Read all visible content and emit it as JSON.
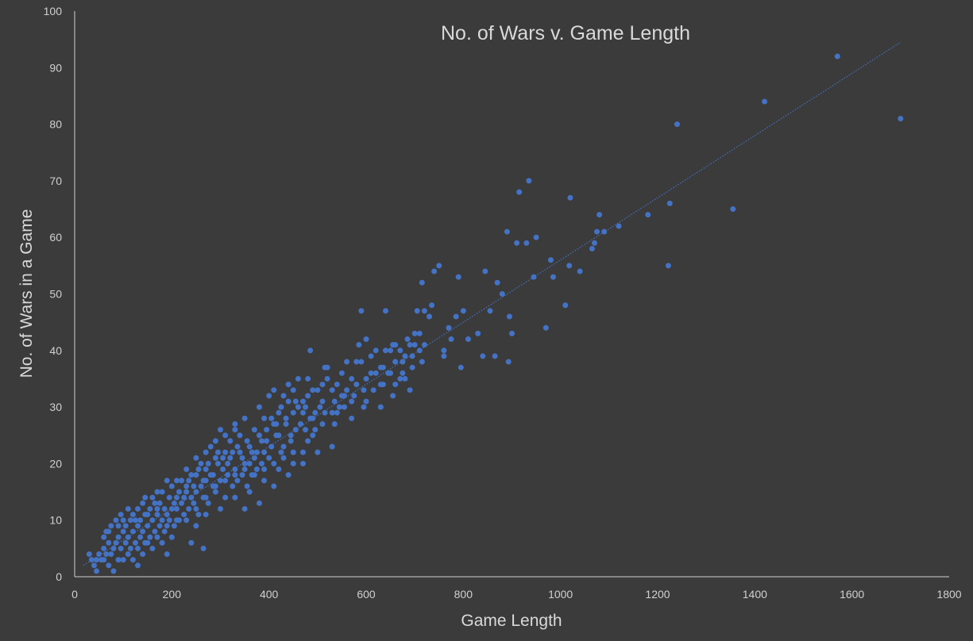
{
  "chart_data": {
    "type": "scatter",
    "title": "No. of Wars v. Game Length",
    "xlabel": "Game Length",
    "ylabel": "No. of  Wars in a Game",
    "xlim": [
      0,
      1800
    ],
    "ylim": [
      0,
      100
    ],
    "x_ticks": [
      "0",
      "200",
      "400",
      "600",
      "800",
      "1000",
      "1200",
      "1400",
      "1600",
      "1800"
    ],
    "y_ticks": [
      "0",
      "10",
      "20",
      "30",
      "40",
      "50",
      "60",
      "70",
      "80",
      "90",
      "100"
    ],
    "grid": false,
    "legend": "none",
    "colors": {
      "background": "#3b3b3b",
      "marker": "#4472c4",
      "axis": "#d0d0d0",
      "text": "#d0d0d0"
    },
    "trendline": {
      "style": "dotted",
      "from": [
        18,
        2
      ],
      "to": [
        1700,
        94.5
      ]
    },
    "points": [
      [
        1570,
        92
      ],
      [
        1700,
        81
      ],
      [
        1420,
        84
      ],
      [
        1240,
        80
      ],
      [
        1355,
        65
      ],
      [
        1225,
        66
      ],
      [
        1222,
        55
      ],
      [
        1180,
        64
      ],
      [
        1120,
        62
      ],
      [
        1090,
        61
      ],
      [
        1080,
        64
      ],
      [
        1075,
        61
      ],
      [
        1070,
        59
      ],
      [
        1065,
        58
      ],
      [
        1040,
        54
      ],
      [
        1020,
        67
      ],
      [
        1018,
        55
      ],
      [
        1010,
        48
      ],
      [
        980,
        56
      ],
      [
        985,
        53
      ],
      [
        970,
        44
      ],
      [
        950,
        60
      ],
      [
        945,
        53
      ],
      [
        935,
        70
      ],
      [
        915,
        68
      ],
      [
        930,
        59
      ],
      [
        910,
        59
      ],
      [
        895,
        46
      ],
      [
        890,
        61
      ],
      [
        900,
        43
      ],
      [
        893,
        38
      ],
      [
        880,
        50
      ],
      [
        870,
        52
      ],
      [
        865,
        39
      ],
      [
        855,
        47
      ],
      [
        845,
        54
      ],
      [
        840,
        39
      ],
      [
        830,
        43
      ],
      [
        810,
        42
      ],
      [
        800,
        47
      ],
      [
        790,
        53
      ],
      [
        795,
        37
      ],
      [
        785,
        46
      ],
      [
        775,
        42
      ],
      [
        770,
        44
      ],
      [
        760,
        40
      ],
      [
        750,
        55
      ],
      [
        740,
        54
      ],
      [
        735,
        48
      ],
      [
        730,
        46
      ],
      [
        720,
        47
      ],
      [
        715,
        52
      ],
      [
        710,
        43
      ],
      [
        705,
        47
      ],
      [
        700,
        41
      ],
      [
        695,
        39
      ],
      [
        690,
        33
      ],
      [
        685,
        42
      ],
      [
        680,
        35
      ],
      [
        675,
        38
      ],
      [
        670,
        40
      ],
      [
        660,
        38
      ],
      [
        655,
        41
      ],
      [
        650,
        40
      ],
      [
        645,
        36
      ],
      [
        640,
        47
      ],
      [
        635,
        37
      ],
      [
        630,
        34
      ],
      [
        620,
        36
      ],
      [
        610,
        39
      ],
      [
        600,
        35
      ],
      [
        595,
        33
      ],
      [
        590,
        38
      ],
      [
        585,
        41
      ],
      [
        580,
        34
      ],
      [
        570,
        31
      ],
      [
        560,
        38
      ],
      [
        555,
        32
      ],
      [
        550,
        36
      ],
      [
        545,
        30
      ],
      [
        540,
        34
      ],
      [
        535,
        27
      ],
      [
        530,
        29
      ],
      [
        520,
        35
      ],
      [
        515,
        37
      ],
      [
        510,
        31
      ],
      [
        505,
        30
      ],
      [
        500,
        33
      ],
      [
        495,
        26
      ],
      [
        490,
        28
      ],
      [
        485,
        40
      ],
      [
        480,
        32
      ],
      [
        475,
        30
      ],
      [
        470,
        29
      ],
      [
        465,
        27
      ],
      [
        460,
        35
      ],
      [
        455,
        26
      ],
      [
        450,
        29
      ],
      [
        445,
        24
      ],
      [
        440,
        31
      ],
      [
        435,
        27
      ],
      [
        430,
        23
      ],
      [
        425,
        30
      ],
      [
        420,
        25
      ],
      [
        415,
        27
      ],
      [
        410,
        33
      ],
      [
        405,
        28
      ],
      [
        400,
        21
      ],
      [
        395,
        26
      ],
      [
        390,
        22
      ],
      [
        385,
        24
      ],
      [
        380,
        25
      ],
      [
        375,
        19
      ],
      [
        370,
        21
      ],
      [
        365,
        18
      ],
      [
        360,
        20
      ],
      [
        355,
        16
      ],
      [
        350,
        20
      ],
      [
        345,
        18
      ],
      [
        340,
        22
      ],
      [
        335,
        17
      ],
      [
        330,
        19
      ],
      [
        325,
        16
      ],
      [
        320,
        21
      ],
      [
        315,
        18
      ],
      [
        310,
        14
      ],
      [
        305,
        19
      ],
      [
        300,
        17
      ],
      [
        295,
        20
      ],
      [
        290,
        15
      ],
      [
        285,
        16
      ],
      [
        280,
        18
      ],
      [
        275,
        13
      ],
      [
        270,
        17
      ],
      [
        265,
        14
      ],
      [
        260,
        16
      ],
      [
        255,
        11
      ],
      [
        250,
        15
      ],
      [
        245,
        13
      ],
      [
        240,
        14
      ],
      [
        235,
        12
      ],
      [
        230,
        15
      ],
      [
        225,
        11
      ],
      [
        220,
        13
      ],
      [
        215,
        10
      ],
      [
        210,
        12
      ],
      [
        205,
        9
      ],
      [
        200,
        12
      ],
      [
        195,
        10
      ],
      [
        190,
        11
      ],
      [
        185,
        8
      ],
      [
        180,
        10
      ],
      [
        175,
        9
      ],
      [
        170,
        11
      ],
      [
        165,
        8
      ],
      [
        160,
        10
      ],
      [
        155,
        7
      ],
      [
        150,
        9
      ],
      [
        145,
        6
      ],
      [
        140,
        8
      ],
      [
        135,
        7
      ],
      [
        130,
        9
      ],
      [
        125,
        6
      ],
      [
        120,
        8
      ],
      [
        115,
        5
      ],
      [
        110,
        7
      ],
      [
        105,
        6
      ],
      [
        100,
        8
      ],
      [
        95,
        5
      ],
      [
        90,
        7
      ],
      [
        85,
        6
      ],
      [
        80,
        5
      ],
      [
        75,
        4
      ],
      [
        70,
        6
      ],
      [
        65,
        4
      ],
      [
        60,
        5
      ],
      [
        55,
        3
      ],
      [
        50,
        4
      ],
      [
        45,
        3
      ],
      [
        40,
        2
      ],
      [
        35,
        3
      ],
      [
        30,
        4
      ],
      [
        45,
        1
      ],
      [
        80,
        1
      ],
      [
        130,
        2
      ],
      [
        190,
        4
      ],
      [
        265,
        5
      ],
      [
        240,
        6
      ],
      [
        590,
        47
      ],
      [
        600,
        42
      ],
      [
        640,
        40
      ],
      [
        700,
        43
      ],
      [
        720,
        41
      ],
      [
        760,
        39
      ],
      [
        480,
        35
      ],
      [
        520,
        37
      ],
      [
        560,
        33
      ],
      [
        460,
        30
      ],
      [
        410,
        27
      ],
      [
        440,
        34
      ],
      [
        380,
        30
      ],
      [
        350,
        28
      ],
      [
        330,
        27
      ],
      [
        300,
        26
      ],
      [
        280,
        23
      ],
      [
        260,
        20
      ],
      [
        240,
        18
      ],
      [
        220,
        17
      ],
      [
        200,
        16
      ],
      [
        180,
        15
      ],
      [
        160,
        14
      ],
      [
        140,
        13
      ],
      [
        120,
        11
      ],
      [
        100,
        10
      ],
      [
        90,
        9
      ],
      [
        70,
        8
      ],
      [
        60,
        7
      ],
      [
        110,
        12
      ],
      [
        150,
        11
      ],
      [
        170,
        12
      ],
      [
        210,
        14
      ],
      [
        230,
        16
      ],
      [
        250,
        18
      ],
      [
        270,
        19
      ],
      [
        290,
        21
      ],
      [
        310,
        22
      ],
      [
        320,
        24
      ],
      [
        340,
        25
      ],
      [
        360,
        23
      ],
      [
        370,
        26
      ],
      [
        390,
        28
      ],
      [
        400,
        32
      ],
      [
        420,
        29
      ],
      [
        430,
        32
      ],
      [
        450,
        33
      ],
      [
        470,
        31
      ],
      [
        490,
        33
      ],
      [
        510,
        34
      ],
      [
        530,
        33
      ],
      [
        550,
        32
      ],
      [
        570,
        35
      ],
      [
        580,
        38
      ],
      [
        610,
        36
      ],
      [
        620,
        40
      ],
      [
        630,
        37
      ],
      [
        650,
        36
      ],
      [
        660,
        41
      ],
      [
        670,
        35
      ],
      [
        680,
        39
      ],
      [
        690,
        41
      ],
      [
        710,
        40
      ],
      [
        200,
        7
      ],
      [
        180,
        6
      ],
      [
        160,
        5
      ],
      [
        140,
        4
      ],
      [
        120,
        3
      ],
      [
        100,
        3
      ],
      [
        250,
        9
      ],
      [
        270,
        11
      ],
      [
        300,
        12
      ],
      [
        330,
        14
      ],
      [
        360,
        15
      ],
      [
        390,
        17
      ],
      [
        420,
        19
      ],
      [
        450,
        22
      ],
      [
        480,
        24
      ],
      [
        510,
        27
      ],
      [
        540,
        29
      ],
      [
        570,
        28
      ],
      [
        600,
        31
      ],
      [
        630,
        30
      ],
      [
        660,
        34
      ],
      [
        530,
        23
      ],
      [
        500,
        22
      ],
      [
        470,
        20
      ],
      [
        440,
        18
      ],
      [
        410,
        16
      ],
      [
        380,
        13
      ],
      [
        350,
        12
      ],
      [
        130,
        12
      ],
      [
        145,
        14
      ],
      [
        170,
        15
      ],
      [
        190,
        17
      ],
      [
        210,
        17
      ],
      [
        230,
        19
      ],
      [
        250,
        21
      ],
      [
        270,
        22
      ],
      [
        290,
        24
      ],
      [
        310,
        25
      ],
      [
        330,
        26
      ],
      [
        85,
        10
      ],
      [
        95,
        11
      ],
      [
        115,
        10
      ],
      [
        135,
        10
      ],
      [
        155,
        12
      ],
      [
        175,
        13
      ],
      [
        195,
        14
      ],
      [
        215,
        15
      ],
      [
        235,
        17
      ],
      [
        255,
        19
      ],
      [
        275,
        20
      ],
      [
        295,
        22
      ],
      [
        315,
        20
      ],
      [
        335,
        23
      ],
      [
        355,
        24
      ],
      [
        375,
        22
      ],
      [
        395,
        24
      ],
      [
        415,
        25
      ],
      [
        435,
        28
      ],
      [
        455,
        31
      ],
      [
        475,
        26
      ],
      [
        495,
        29
      ],
      [
        515,
        29
      ],
      [
        535,
        31
      ],
      [
        555,
        30
      ],
      [
        575,
        32
      ],
      [
        595,
        30
      ],
      [
        615,
        33
      ],
      [
        635,
        34
      ],
      [
        655,
        32
      ],
      [
        675,
        36
      ],
      [
        695,
        37
      ],
      [
        715,
        38
      ],
      [
        65,
        8
      ],
      [
        75,
        9
      ],
      [
        105,
        9
      ],
      [
        125,
        10
      ],
      [
        145,
        11
      ],
      [
        165,
        13
      ],
      [
        185,
        12
      ],
      [
        205,
        13
      ],
      [
        225,
        14
      ],
      [
        245,
        16
      ],
      [
        265,
        17
      ],
      [
        285,
        18
      ],
      [
        305,
        21
      ],
      [
        325,
        22
      ],
      [
        345,
        21
      ],
      [
        365,
        22
      ],
      [
        385,
        20
      ],
      [
        405,
        23
      ],
      [
        425,
        22
      ],
      [
        445,
        25
      ],
      [
        465,
        27
      ],
      [
        485,
        28
      ],
      [
        60,
        3
      ],
      [
        70,
        2
      ],
      [
        90,
        3
      ],
      [
        110,
        4
      ],
      [
        130,
        5
      ],
      [
        150,
        6
      ],
      [
        170,
        7
      ],
      [
        190,
        9
      ],
      [
        210,
        10
      ],
      [
        230,
        10
      ],
      [
        250,
        12
      ],
      [
        270,
        14
      ],
      [
        290,
        16
      ],
      [
        310,
        17
      ],
      [
        330,
        18
      ],
      [
        350,
        19
      ],
      [
        370,
        18
      ],
      [
        390,
        19
      ],
      [
        410,
        20
      ],
      [
        430,
        21
      ],
      [
        450,
        20
      ],
      [
        470,
        22
      ],
      [
        490,
        25
      ]
    ]
  }
}
